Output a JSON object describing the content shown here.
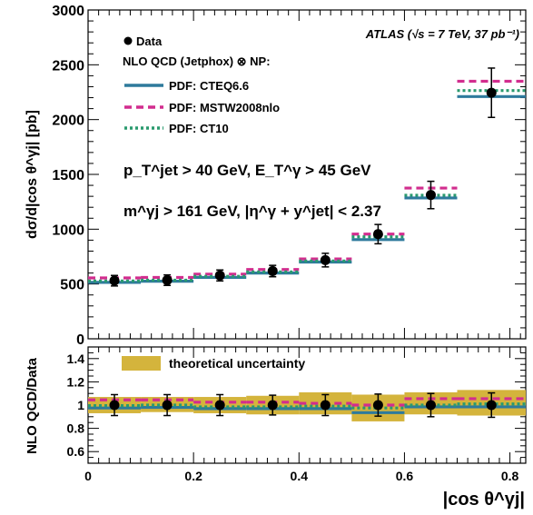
{
  "chart_data": [
    {
      "type": "histogram",
      "panel": "main",
      "ylabel": "dσ/d|cos θ^γj| [pb]",
      "ylim": [
        0,
        3000
      ],
      "xlim": [
        0,
        0.83
      ],
      "yticks": [
        "0",
        "500",
        "1000",
        "1500",
        "2000",
        "2500",
        "3000"
      ],
      "bins": [
        [
          0,
          0.1
        ],
        [
          0.1,
          0.2
        ],
        [
          0.2,
          0.3
        ],
        [
          0.3,
          0.4
        ],
        [
          0.4,
          0.5
        ],
        [
          0.5,
          0.6
        ],
        [
          0.6,
          0.7
        ],
        [
          0.7,
          0.83
        ]
      ],
      "data": {
        "name": "Data",
        "x": [
          0.05,
          0.15,
          0.25,
          0.35,
          0.45,
          0.55,
          0.65,
          0.765
        ],
        "y": [
          530,
          535,
          578,
          618,
          718,
          955,
          1312,
          2245
        ],
        "err": [
          48,
          48,
          50,
          52,
          62,
          88,
          125,
          225
        ]
      },
      "series": [
        {
          "name": "PDF: CTEQ6.6",
          "style": "solid",
          "color": "#2e7a9c",
          "values": [
            515,
            525,
            560,
            600,
            700,
            905,
            1285,
            2210
          ]
        },
        {
          "name": "PDF: MSTW2008nlo",
          "style": "dashed",
          "color": "#d22d8e",
          "values": [
            555,
            560,
            590,
            632,
            728,
            955,
            1375,
            2350
          ]
        },
        {
          "name": "PDF: CT10",
          "style": "dotted",
          "color": "#2a9a6e",
          "values": [
            528,
            535,
            570,
            610,
            710,
            930,
            1310,
            2265
          ]
        }
      ],
      "legend_title": "NLO QCD (Jetphox) ⊗ NP:",
      "legend_data": "Data",
      "experiment_label": "ATLAS (√s = 7 TeV, 37 pb⁻¹)",
      "cut_line1": "p_T^jet > 40 GeV, E_T^γ > 45 GeV",
      "cut_line2": "m^γj > 161 GeV, |η^γ + y^jet| < 2.37"
    },
    {
      "type": "histogram",
      "panel": "ratio",
      "ylabel": "NLO QCD/Data",
      "xlabel": "|cos θ^γj|",
      "ylim": [
        0.5,
        1.5
      ],
      "xlim": [
        0,
        0.83
      ],
      "yticks": [
        "0.6",
        "0.8",
        "1",
        "1.2",
        "1.4"
      ],
      "xticks": [
        "0",
        "0.2",
        "0.4",
        "0.6",
        "0.8"
      ],
      "bins": [
        [
          0,
          0.1
        ],
        [
          0.1,
          0.2
        ],
        [
          0.2,
          0.3
        ],
        [
          0.3,
          0.4
        ],
        [
          0.4,
          0.5
        ],
        [
          0.5,
          0.6
        ],
        [
          0.6,
          0.7
        ],
        [
          0.7,
          0.83
        ]
      ],
      "data": {
        "name": "Data",
        "x": [
          0.05,
          0.15,
          0.25,
          0.35,
          0.45,
          0.55,
          0.65,
          0.765
        ],
        "y": [
          1.0,
          1.0,
          1.0,
          1.0,
          1.0,
          1.0,
          1.0,
          1.0
        ],
        "err": [
          0.09,
          0.09,
          0.09,
          0.085,
          0.09,
          0.095,
          0.1,
          0.105
        ]
      },
      "band": {
        "name": "theoretical uncertainty",
        "color": "#d4b43c",
        "low": [
          0.93,
          0.94,
          0.93,
          0.92,
          0.92,
          0.86,
          0.92,
          0.91
        ],
        "high": [
          1.07,
          1.07,
          1.07,
          1.08,
          1.11,
          1.09,
          1.11,
          1.13
        ]
      },
      "series": [
        {
          "name": "PDF: CTEQ6.6",
          "style": "solid",
          "color": "#2e7a9c",
          "values": [
            0.975,
            0.98,
            0.97,
            0.97,
            0.97,
            0.935,
            0.985,
            0.985
          ]
        },
        {
          "name": "PDF: MSTW2008nlo",
          "style": "dashed",
          "color": "#d22d8e",
          "values": [
            1.045,
            1.045,
            1.025,
            1.025,
            1.015,
            1.0,
            1.055,
            1.055
          ]
        },
        {
          "name": "PDF: CT10",
          "style": "dotted",
          "color": "#2a9a6e",
          "values": [
            0.995,
            1.0,
            0.985,
            0.985,
            0.99,
            0.975,
            1.0,
            1.01
          ]
        }
      ]
    }
  ]
}
